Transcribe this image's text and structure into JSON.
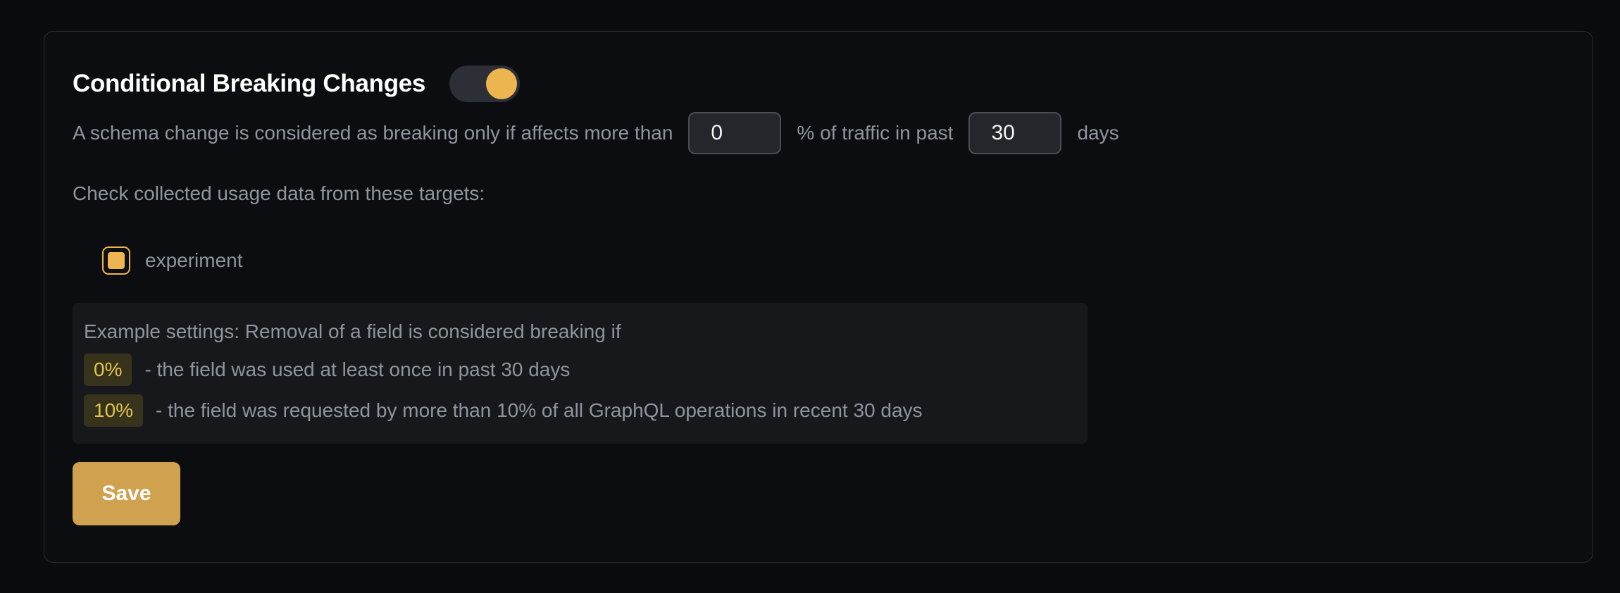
{
  "theme": {
    "page_background": "#0a0b0e",
    "card_background": "#0c0d10",
    "card_border": "#2b2d33",
    "accent_gold_bright": "#ecb550",
    "accent_gold_button": "#d0a14e",
    "badge_background": "#37321c",
    "badge_text": "#e2c44c",
    "body_text": "#8f949e",
    "title_text": "#ffffff",
    "input_background": "#24262b",
    "input_border": "#4a4d53",
    "example_box_background": "#17181c"
  },
  "panel": {
    "title": "Conditional Breaking Changes",
    "toggle": {
      "state": "on"
    },
    "threshold_sentence": {
      "part1": "A schema change is considered as breaking only if affects more than",
      "percent_value": "0",
      "part2": "% of traffic in past",
      "days_value": "30",
      "part3": "days"
    },
    "targets": {
      "label": "Check collected usage data from these targets:",
      "items": [
        {
          "name": "experiment",
          "checked": true
        }
      ]
    },
    "example": {
      "intro": "Example settings: Removal of a field is considered breaking if",
      "rows": [
        {
          "badge": "0%",
          "text": "- the field was used at least once in past 30 days"
        },
        {
          "badge": "10%",
          "text": "- the field was requested by more than 10% of all GraphQL operations in recent 30 days"
        }
      ]
    },
    "save_label": "Save"
  }
}
